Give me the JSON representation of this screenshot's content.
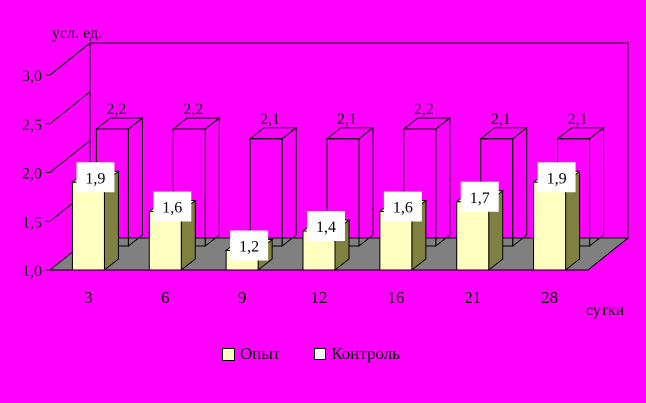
{
  "chart_data": {
    "type": "bar",
    "ylabel": "усл. ед.",
    "xlabel": "сутки",
    "ylim": [
      1.0,
      3.0
    ],
    "yticks": [
      "1,0",
      "1,5",
      "2,0",
      "2,5",
      "3,0"
    ],
    "categories": [
      "3",
      "6",
      "9",
      "12",
      "16",
      "21",
      "28"
    ],
    "series": [
      {
        "name": "Опыт",
        "values": [
          1.9,
          1.6,
          1.2,
          1.4,
          1.6,
          1.7,
          1.9
        ],
        "labels": [
          "1,9",
          "1,6",
          "1,2",
          "1,4",
          "1,6",
          "1,7",
          "1,9"
        ],
        "color": "#ffffc0"
      },
      {
        "name": "Контроль",
        "values": [
          2.2,
          2.2,
          2.1,
          2.1,
          2.2,
          2.1,
          2.1
        ],
        "labels": [
          "2,2",
          "2,2",
          "2,1",
          "2,1",
          "2,2",
          "2,1",
          "2,1"
        ],
        "color": "#ff00ff"
      }
    ],
    "legend_position": "bottom",
    "grid": false,
    "three_d": true
  },
  "colors": {
    "background": "#ff00ff",
    "floor": "#808080",
    "experiment_front": "#ffffc0",
    "experiment_side": "#808040"
  }
}
